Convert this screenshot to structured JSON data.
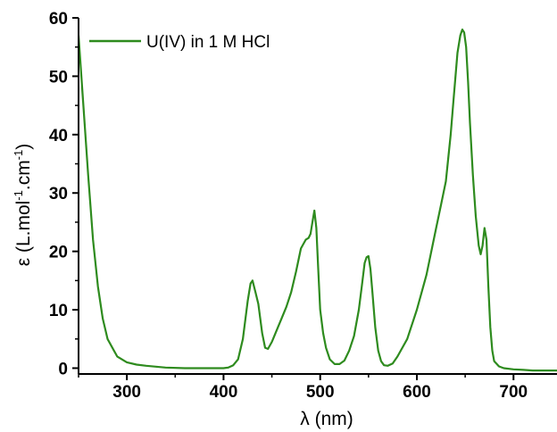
{
  "chart_data": {
    "type": "line",
    "title": "",
    "xlabel": "λ (nm)",
    "ylabel": {
      "prefix": "ε (L.mol",
      "exp1": "-1",
      "middle": ".cm",
      "exp2": "-1",
      "suffix": ")"
    },
    "xlim": [
      250,
      745
    ],
    "ylim": [
      -1,
      60
    ],
    "xticks": [
      300,
      400,
      500,
      600,
      700
    ],
    "xtick_labels": [
      "300",
      "400",
      "500",
      "600",
      "700"
    ],
    "yticks": [
      0,
      10,
      20,
      30,
      40,
      50,
      60
    ],
    "ytick_labels": [
      "0",
      "10",
      "20",
      "30",
      "40",
      "50",
      "60"
    ],
    "grid": false,
    "legend_position": "top-left",
    "line_color": "#2e8b1e",
    "series": [
      {
        "name": "U(IV) in 1 M HCl",
        "x": [
          250,
          255,
          260,
          265,
          270,
          275,
          280,
          290,
          300,
          310,
          320,
          340,
          360,
          380,
          400,
          405,
          410,
          415,
          420,
          425,
          428,
          430,
          433,
          436,
          440,
          443,
          446,
          450,
          455,
          460,
          465,
          470,
          475,
          480,
          485,
          488,
          490,
          492,
          494,
          496,
          498,
          500,
          503,
          506,
          510,
          515,
          520,
          525,
          530,
          535,
          540,
          543,
          546,
          548,
          550,
          552,
          554,
          557,
          560,
          563,
          566,
          570,
          575,
          580,
          590,
          600,
          610,
          620,
          625,
          630,
          635,
          638,
          640,
          642,
          645,
          647,
          649,
          651,
          653,
          655,
          658,
          661,
          664,
          666,
          668,
          670,
          672,
          674,
          676,
          678,
          680,
          685,
          690,
          700,
          710,
          720,
          730,
          745
        ],
        "y": [
          57,
          45,
          33,
          22,
          14,
          8.5,
          5,
          2,
          1,
          0.6,
          0.4,
          0.1,
          0,
          0,
          0,
          0.1,
          0.5,
          1.5,
          5,
          11.5,
          14.5,
          15,
          13,
          11,
          6,
          3.5,
          3.3,
          4.5,
          6.5,
          8.5,
          10.5,
          13,
          16.5,
          20.5,
          22,
          22.3,
          23,
          25,
          27,
          24,
          17,
          10,
          6,
          3.5,
          1.5,
          0.7,
          0.7,
          1.3,
          3,
          5.5,
          10,
          14,
          18,
          19,
          19.2,
          17,
          13,
          7,
          3,
          1.2,
          0.5,
          0.4,
          0.8,
          2,
          5,
          10,
          16,
          24,
          28,
          32,
          40,
          46,
          50,
          54,
          57,
          58,
          57.5,
          55,
          49,
          42,
          33,
          26,
          21,
          19.5,
          21,
          24,
          22,
          14,
          7,
          3,
          1.2,
          0.3,
          0,
          -0.2,
          -0.3,
          -0.4,
          -0.4,
          -0.4
        ]
      }
    ]
  }
}
